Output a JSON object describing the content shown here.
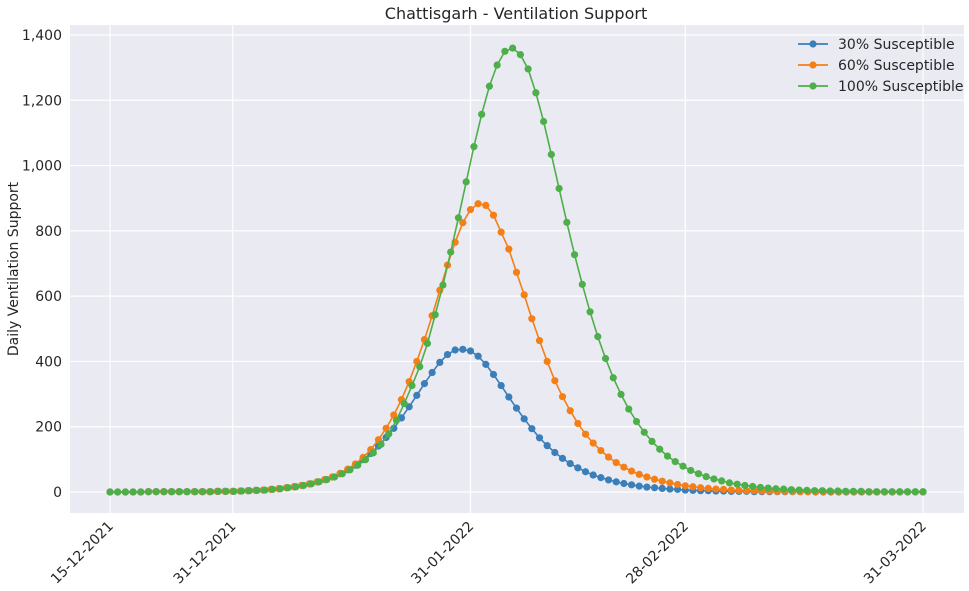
{
  "chart_data": {
    "type": "line",
    "title": "Chattisgarh - Ventilation Support",
    "xlabel": "",
    "ylabel": "Daily Ventilation Support",
    "x_start": "15-12-2021",
    "x_end": "31-03-2022",
    "x_ticks": [
      "15-12-2021",
      "31-12-2021",
      "31-01-2022",
      "28-02-2022",
      "31-03-2022"
    ],
    "ylim": [
      -70,
      1430
    ],
    "y_ticks": [
      0,
      200,
      400,
      600,
      800,
      1000,
      1200,
      1400
    ],
    "y_tick_labels": [
      "0",
      "200",
      "400",
      "600",
      "800",
      "1,000",
      "1,200",
      "1,400"
    ],
    "grid": true,
    "legend_position": "top-right",
    "markers": "circle",
    "series": [
      {
        "name": "30% Susceptible",
        "color": "#3a7fb9",
        "peak_date": "28-01-2022",
        "peak_value": 437,
        "values": [
          0,
          0,
          0,
          0,
          0,
          1,
          1,
          1,
          1,
          1,
          1,
          1,
          1,
          1,
          2,
          2,
          2,
          3,
          4,
          5,
          6,
          8,
          10,
          13,
          16,
          20,
          25,
          31,
          38,
          46,
          56,
          68,
          82,
          99,
          118,
          141,
          167,
          195,
          227,
          261,
          296,
          332,
          366,
          397,
          421,
          435,
          437,
          432,
          416,
          391,
          360,
          326,
          291,
          257,
          224,
          194,
          166,
          142,
          121,
          103,
          87,
          74,
          62,
          52,
          44,
          37,
          31,
          26,
          22,
          18,
          15,
          13,
          11,
          9,
          8,
          6,
          5,
          4,
          4,
          3,
          3,
          2,
          2,
          2,
          1,
          1,
          1,
          1,
          1,
          1,
          1,
          1,
          0,
          0,
          0,
          0,
          0,
          0,
          0,
          0,
          0,
          0,
          0,
          0,
          0,
          0,
          0
        ]
      },
      {
        "name": "60% Susceptible",
        "color": "#f57f17",
        "peak_date": "31-01-2022",
        "peak_value": 883,
        "values": [
          0,
          0,
          0,
          0,
          0,
          1,
          1,
          1,
          1,
          1,
          1,
          1,
          1,
          1,
          2,
          2,
          2,
          3,
          4,
          5,
          6,
          8,
          10,
          13,
          16,
          20,
          25,
          31,
          38,
          46,
          57,
          70,
          86,
          106,
          130,
          160,
          195,
          236,
          283,
          338,
          400,
          467,
          540,
          618,
          695,
          765,
          825,
          865,
          883,
          878,
          848,
          796,
          744,
          673,
          604,
          531,
          464,
          400,
          341,
          292,
          249,
          210,
          177,
          150,
          127,
          107,
          90,
          76,
          64,
          54,
          46,
          39,
          33,
          28,
          23,
          19,
          16,
          13,
          11,
          9,
          8,
          6,
          5,
          4,
          4,
          3,
          3,
          2,
          2,
          2,
          1,
          1,
          1,
          1,
          1,
          1,
          1,
          0,
          0,
          0,
          0,
          0,
          0,
          0,
          0,
          0,
          0
        ]
      },
      {
        "name": "100% Susceptible",
        "color": "#4daf4a",
        "peak_date": "04-02-2022",
        "peak_value": 1360,
        "values": [
          0,
          0,
          0,
          0,
          0,
          1,
          1,
          1,
          1,
          1,
          1,
          1,
          1,
          1,
          2,
          2,
          2,
          3,
          4,
          5,
          6,
          8,
          10,
          13,
          16,
          20,
          25,
          31,
          38,
          46,
          56,
          68,
          82,
          99,
          120,
          146,
          178,
          220,
          271,
          326,
          384,
          455,
          543,
          634,
          735,
          840,
          950,
          1058,
          1157,
          1243,
          1308,
          1350,
          1360,
          1340,
          1296,
          1223,
          1135,
          1034,
          930,
          826,
          727,
          636,
          552,
          476,
          409,
          350,
          299,
          254,
          216,
          183,
          155,
          131,
          110,
          93,
          79,
          66,
          56,
          47,
          40,
          34,
          28,
          24,
          20,
          17,
          14,
          12,
          10,
          9,
          7,
          6,
          5,
          4,
          4,
          3,
          3,
          2,
          2,
          2,
          1,
          1,
          1,
          1,
          1,
          1,
          1,
          1
        ]
      }
    ]
  }
}
